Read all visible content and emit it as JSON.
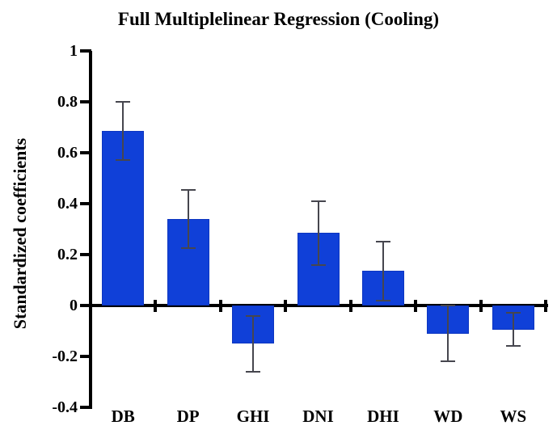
{
  "title": "Full Multiplelinear Regression (Cooling)",
  "y_axis_label": "Standardized coefficients",
  "chart_data": {
    "type": "bar",
    "title": "Full Multiplelinear Regression (Cooling)",
    "xlabel": "",
    "ylabel": "Standardized coefficients",
    "categories": [
      "DB",
      "DP",
      "GHI",
      "DNI",
      "DHI",
      "WD",
      "WS"
    ],
    "series": [
      {
        "name": "Standardized coefficients",
        "values": [
          0.685,
          0.34,
          -0.15,
          0.285,
          0.135,
          -0.11,
          -0.095
        ],
        "errors": [
          0.115,
          0.115,
          0.11,
          0.125,
          0.115,
          0.11,
          0.065
        ]
      }
    ],
    "ylim": [
      -0.4,
      1.0
    ],
    "ytick_step": 0.2,
    "ytick_labels": [
      "1",
      "0.8",
      "0.6",
      "0.4",
      "0.2",
      "0",
      "-0.2",
      "-0.4"
    ],
    "grid": false,
    "legend": "none",
    "bar_color": "#1040d8",
    "bar_edge_color": "#0c35c0",
    "error_bar_color": "#46464e",
    "axis_color": "#000000",
    "text_color": "#000000",
    "background_color": "#ffffff"
  }
}
